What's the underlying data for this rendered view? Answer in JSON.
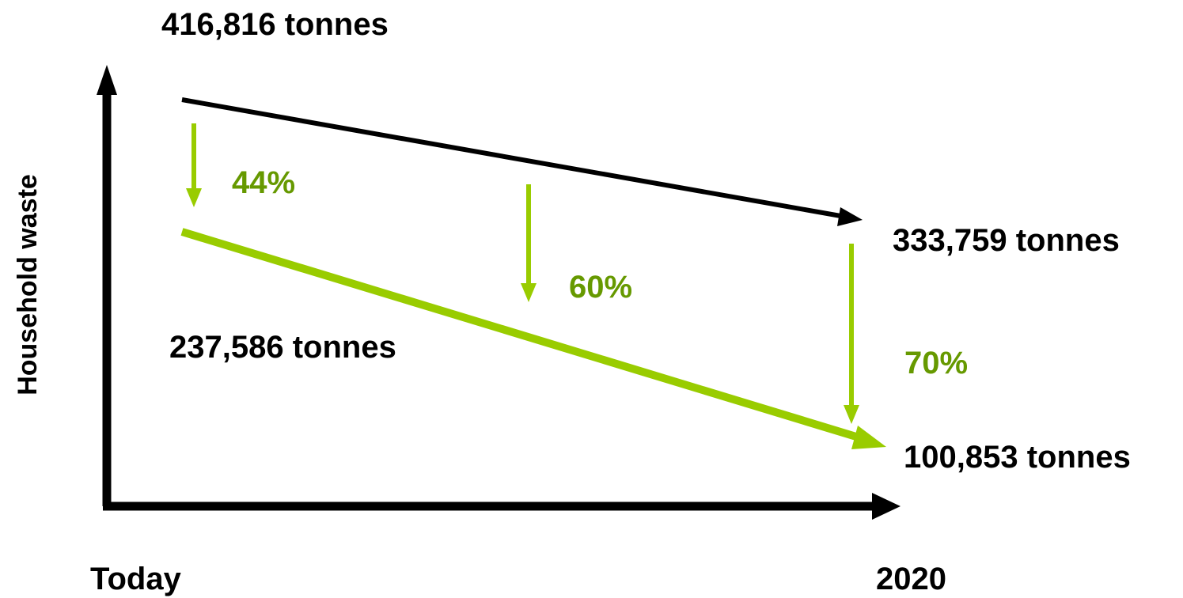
{
  "axes": {
    "y_label": "Household waste",
    "x_start_label": "Today",
    "x_end_label": "2020"
  },
  "values": {
    "waste_today": "416,816 tonnes",
    "waste_2020": "333,759 tonnes",
    "residual_today": "237,586 tonnes",
    "residual_2020": "100,853 tonnes"
  },
  "percentages": {
    "today": "44%",
    "mid": "60%",
    "end": "70%"
  },
  "colors": {
    "axis": "#000000",
    "total_line": "#000000",
    "target_line": "#99cc00",
    "percent_text": "#669900",
    "value_text": "#000000"
  }
}
